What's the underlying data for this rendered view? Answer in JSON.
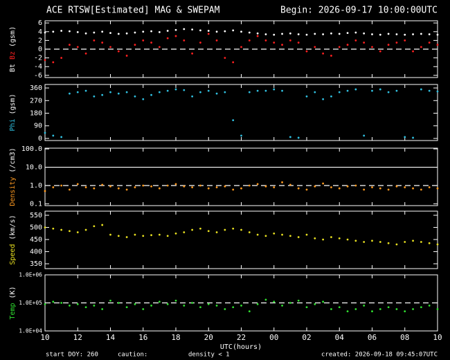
{
  "chart_data": {
    "type": "scatter",
    "title": "ACE RTSW[Estimated] MAG & SWEPAM",
    "subtitle": "Begin: 2026-09-17 10:00:00UTC",
    "xlabel": "UTC(hours)",
    "footer": {
      "start": "start DOY: 260",
      "caution": "caution:",
      "caution_note": "density < 1",
      "caution_color": "#ff9a20",
      "created": "created: 2026-09-18 09:45:07UTC"
    },
    "xlim": [
      0,
      24
    ],
    "xticks": [
      {
        "value": 0,
        "label": "10"
      },
      {
        "value": 2,
        "label": "12"
      },
      {
        "value": 4,
        "label": "14"
      },
      {
        "value": 6,
        "label": "16"
      },
      {
        "value": 8,
        "label": "18"
      },
      {
        "value": 10,
        "label": "20"
      },
      {
        "value": 12,
        "label": "22"
      },
      {
        "value": 14,
        "label": "00"
      },
      {
        "value": 16,
        "label": "02"
      },
      {
        "value": 18,
        "label": "04"
      },
      {
        "value": 20,
        "label": "06"
      },
      {
        "value": 22,
        "label": "08"
      },
      {
        "value": 24,
        "label": "10"
      }
    ],
    "x": [
      0,
      0.5,
      1,
      1.5,
      2,
      2.5,
      3,
      3.5,
      4,
      4.5,
      5,
      5.5,
      6,
      6.5,
      7,
      7.5,
      8,
      8.5,
      9,
      9.5,
      10,
      10.5,
      11,
      11.5,
      12,
      12.5,
      13,
      13.5,
      14,
      14.5,
      15,
      15.5,
      16,
      16.5,
      17,
      17.5,
      18,
      18.5,
      19,
      19.5,
      20,
      20.5,
      21,
      21.5,
      22,
      22.5,
      23,
      23.5,
      24
    ],
    "panels": [
      {
        "ylabel": [
          {
            "text": "Bt",
            "color": "#ffffff"
          },
          {
            "text": "Bz",
            "color": "#ff2020"
          },
          {
            "text": "(gsm)",
            "color": "#ffffff"
          }
        ],
        "ylim": [
          -6.5,
          6.5
        ],
        "yticks": [
          -6,
          -4,
          -2,
          0,
          2,
          4,
          6
        ],
        "log": false,
        "ref_lines": [
          {
            "value": 0,
            "style": "dashed"
          }
        ],
        "series": [
          {
            "name": "Bt",
            "color": "#ffffff",
            "values": [
              3.8,
              4.0,
              4.2,
              4.1,
              3.9,
              3.6,
              3.8,
              4.0,
              3.7,
              3.5,
              3.6,
              3.8,
              4.0,
              4.1,
              3.9,
              4.2,
              4.4,
              4.6,
              4.5,
              4.3,
              4.2,
              4.0,
              4.1,
              4.3,
              4.0,
              3.8,
              3.6,
              3.4,
              3.3,
              3.5,
              3.6,
              3.4,
              3.3,
              3.5,
              3.4,
              3.6,
              3.5,
              3.7,
              3.8,
              3.6,
              3.4,
              3.3,
              3.5,
              3.4,
              3.3,
              3.4,
              3.5,
              3.4,
              3.3
            ]
          },
          {
            "name": "Bz",
            "color": "#ff2020",
            "values": [
              -2.5,
              -3.0,
              -2.0,
              1.0,
              0.5,
              -1.0,
              2.0,
              1.5,
              0.5,
              -0.5,
              -1.5,
              1.0,
              2.0,
              1.5,
              0.5,
              2.5,
              3.0,
              2.0,
              -1.0,
              1.5,
              3.5,
              2.0,
              -2.0,
              -3.0,
              0.5,
              2.0,
              3.0,
              2.0,
              1.5,
              1.0,
              2.0,
              1.5,
              -0.5,
              0.5,
              -1.0,
              -1.5,
              0.5,
              1.0,
              2.0,
              1.5,
              0.5,
              -0.5,
              1.0,
              1.5,
              2.0,
              -0.5,
              0.5,
              1.5,
              1.0
            ]
          }
        ]
      },
      {
        "ylabel": [
          {
            "text": "Phi",
            "color": "#30c0e0"
          },
          {
            "text": "(gsm)",
            "color": "#ffffff"
          }
        ],
        "ylim": [
          -15,
          385
        ],
        "yticks": [
          0,
          90,
          180,
          270,
          360
        ],
        "log": false,
        "ref_lines": [],
        "series": [
          {
            "name": "Phi",
            "color": "#30c0e0",
            "values": [
              40,
              20,
              10,
              320,
              330,
              340,
              300,
              310,
              330,
              320,
              330,
              300,
              280,
              310,
              330,
              340,
              350,
              345,
              300,
              330,
              340,
              320,
              330,
              130,
              20,
              330,
              340,
              340,
              350,
              340,
              10,
              5,
              300,
              330,
              280,
              300,
              330,
              340,
              350,
              20,
              340,
              350,
              330,
              340,
              10,
              5,
              350,
              340,
              335
            ]
          }
        ]
      },
      {
        "ylabel": [
          {
            "text": "Density",
            "color": "#ff9a20"
          },
          {
            "text": "(/cm3)",
            "color": "#ffffff"
          }
        ],
        "ylim": [
          0.08,
          110
        ],
        "yticks": [
          0.1,
          {
            "value": 1,
            "label": "1.0"
          },
          {
            "value": 10,
            "label": "10.0"
          },
          {
            "value": 100,
            "label": "100.0"
          }
        ],
        "log": true,
        "ref_lines": [
          {
            "value": 1,
            "style": "dashed"
          },
          {
            "value": 10,
            "style": "solid"
          }
        ],
        "series": [
          {
            "name": "Density",
            "color": "#ff9a20",
            "values": [
              0.5,
              0.8,
              1.0,
              0.6,
              1.2,
              0.8,
              0.7,
              1.1,
              0.9,
              0.7,
              0.6,
              0.8,
              1.0,
              0.9,
              0.7,
              1.0,
              1.2,
              0.9,
              0.8,
              1.0,
              0.7,
              0.8,
              0.9,
              0.6,
              0.7,
              1.0,
              1.2,
              0.9,
              0.8,
              1.5,
              1.1,
              0.7,
              0.6,
              0.9,
              1.3,
              0.8,
              0.7,
              0.9,
              1.0,
              0.6,
              0.8,
              0.7,
              0.6,
              0.9,
              0.8,
              0.7,
              0.6,
              0.8,
              0.7
            ]
          }
        ]
      },
      {
        "ylabel": [
          {
            "text": "Speed",
            "color": "#e8e020"
          },
          {
            "text": "(km/s)",
            "color": "#ffffff"
          }
        ],
        "ylim": [
          330,
          567
        ],
        "yticks": [
          350,
          400,
          450,
          500,
          550
        ],
        "log": false,
        "ref_lines": [],
        "series": [
          {
            "name": "Speed",
            "color": "#e8e020",
            "values": [
              500,
              495,
              490,
              485,
              480,
              490,
              505,
              510,
              470,
              465,
              460,
              470,
              465,
              468,
              470,
              465,
              475,
              480,
              490,
              495,
              485,
              480,
              490,
              495,
              490,
              480,
              470,
              465,
              475,
              470,
              465,
              460,
              470,
              455,
              450,
              460,
              455,
              450,
              445,
              440,
              445,
              440,
              435,
              430,
              440,
              445,
              440,
              435,
              430
            ]
          }
        ]
      },
      {
        "ylabel": [
          {
            "text": "Temp",
            "color": "#30e030"
          },
          {
            "text": "(K)",
            "color": "#ffffff"
          }
        ],
        "ylim": [
          10000,
          1000000
        ],
        "yticks": [
          {
            "value": 10000,
            "label": "1.0E+04"
          },
          {
            "value": 100000,
            "label": "1.0E+05"
          },
          {
            "value": 1000000,
            "label": "1.0E+06"
          }
        ],
        "log": true,
        "ref_lines": [
          {
            "value": 100000,
            "style": "dashed"
          }
        ],
        "series": [
          {
            "name": "Temp",
            "color": "#30e030",
            "values": [
              90000,
              110000,
              100000,
              80000,
              90000,
              70000,
              80000,
              60000,
              120000,
              100000,
              70000,
              90000,
              60000,
              80000,
              110000,
              90000,
              120000,
              80000,
              100000,
              70000,
              90000,
              80000,
              60000,
              70000,
              80000,
              50000,
              90000,
              130000,
              110000,
              80000,
              100000,
              120000,
              70000,
              90000,
              110000,
              60000,
              70000,
              50000,
              60000,
              80000,
              50000,
              60000,
              70000,
              60000,
              50000,
              60000,
              70000,
              80000,
              60000
            ]
          }
        ]
      }
    ]
  }
}
